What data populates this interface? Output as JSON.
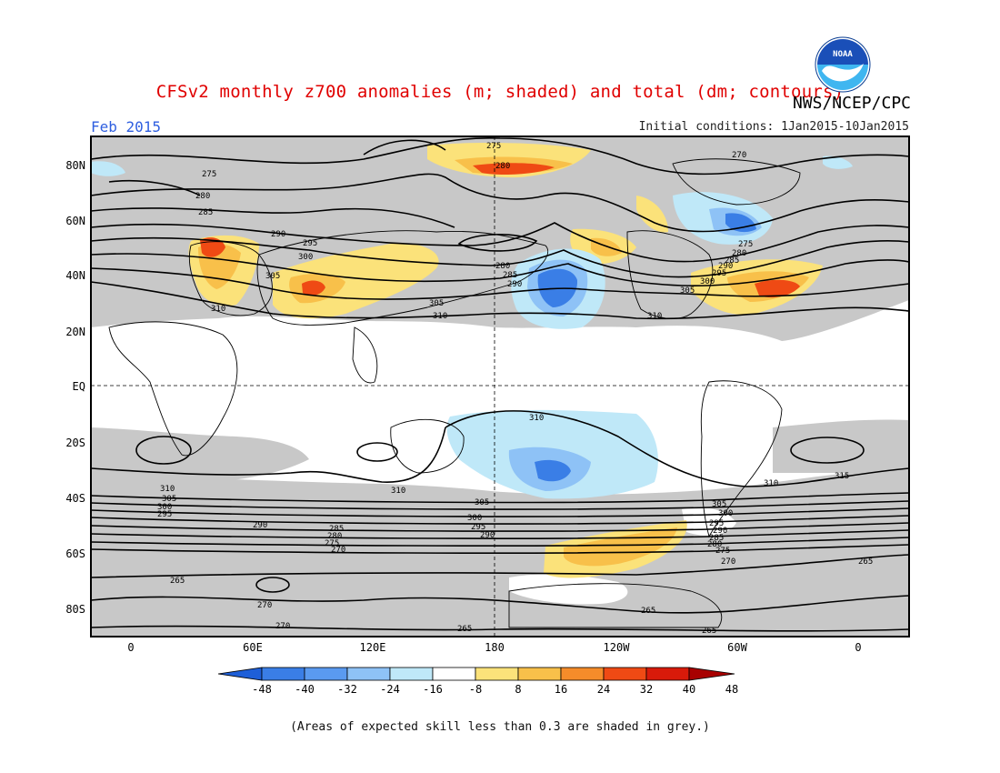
{
  "header": {
    "title": "CFSv2 monthly z700 anomalies (m; shaded) and total (dm; contours)",
    "agency": "NWS/NCEP/CPC",
    "month": "Feb 2015",
    "initial_conditions": "Initial conditions: 1Jan2015-10Jan2015",
    "logo_text": "NOAA"
  },
  "axes": {
    "lat_labels": [
      "80N",
      "60N",
      "40N",
      "20N",
      "EQ",
      "20S",
      "40S",
      "60S",
      "80S"
    ],
    "lon_labels": [
      "0",
      "60E",
      "120E",
      "180",
      "120W",
      "60W",
      "0"
    ]
  },
  "contour_labels": [
    "275",
    "280",
    "285",
    "290",
    "295",
    "300",
    "305",
    "310",
    "315",
    "270",
    "265"
  ],
  "colorbar": {
    "ticks": [
      "-48",
      "-40",
      "-32",
      "-24",
      "-16",
      "-8",
      "8",
      "16",
      "24",
      "32",
      "40",
      "48"
    ],
    "colors": [
      "#1e5fd8",
      "#3a7ee6",
      "#5a9af0",
      "#8ec2f6",
      "#bfe8f8",
      "#ffffff",
      "#fbe27a",
      "#f8c04a",
      "#f58c2a",
      "#ef4a14",
      "#d81a0a",
      "#a80000"
    ]
  },
  "footnote": "(Areas of expected skill less than 0.3 are shaded in grey.)",
  "colors": {
    "title": "#e00000",
    "month": "#2f5fe0",
    "skill_grey": "#c8c8c8"
  }
}
